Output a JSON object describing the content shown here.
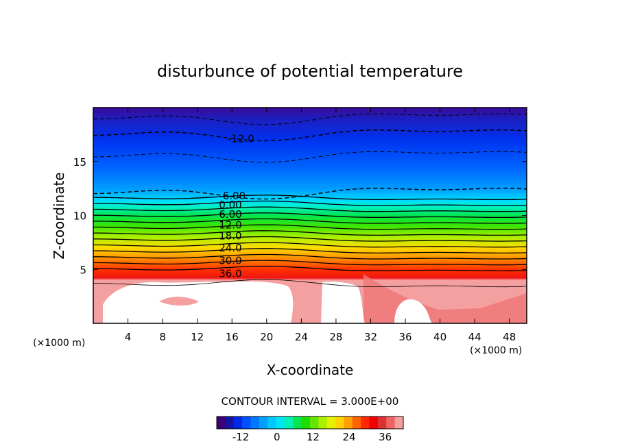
{
  "chart_data": {
    "type": "contour",
    "title": "disturbunce of potential temperature",
    "xlabel": "X-coordinate",
    "ylabel": "Z-coordinate",
    "x_units": "(×1000 m)",
    "z_units": "(×1000 m)",
    "xlim": [
      0,
      50
    ],
    "ylim": [
      0,
      20
    ],
    "x_ticks": [
      "4",
      "8",
      "12",
      "16",
      "20",
      "24",
      "28",
      "32",
      "36",
      "40",
      "44",
      "48"
    ],
    "y_ticks": [
      "5",
      "10",
      "15"
    ],
    "contour_labels": [
      "-12.0",
      "-6.00",
      "0.00",
      "6.00",
      "12.0",
      "18.0",
      "24.0",
      "30.0",
      "36.0"
    ],
    "contour_interval_text": "CONTOUR INTERVAL = 3.000E+00",
    "colorbar": {
      "min": -20,
      "max": 42,
      "tick_labels": [
        "-12",
        "0",
        "12",
        "24",
        "36"
      ],
      "colors": [
        "#3c0078",
        "#1414a0",
        "#0028e6",
        "#0050ff",
        "#0078ff",
        "#00a0ff",
        "#00c8ff",
        "#00e6f0",
        "#00f0b4",
        "#00e650",
        "#1edc00",
        "#64e600",
        "#aaf000",
        "#e6f000",
        "#ffd200",
        "#ffa000",
        "#ff6400",
        "#ff2800",
        "#f00000",
        "#dc3232",
        "#f06464",
        "#f5a0a0"
      ]
    }
  }
}
